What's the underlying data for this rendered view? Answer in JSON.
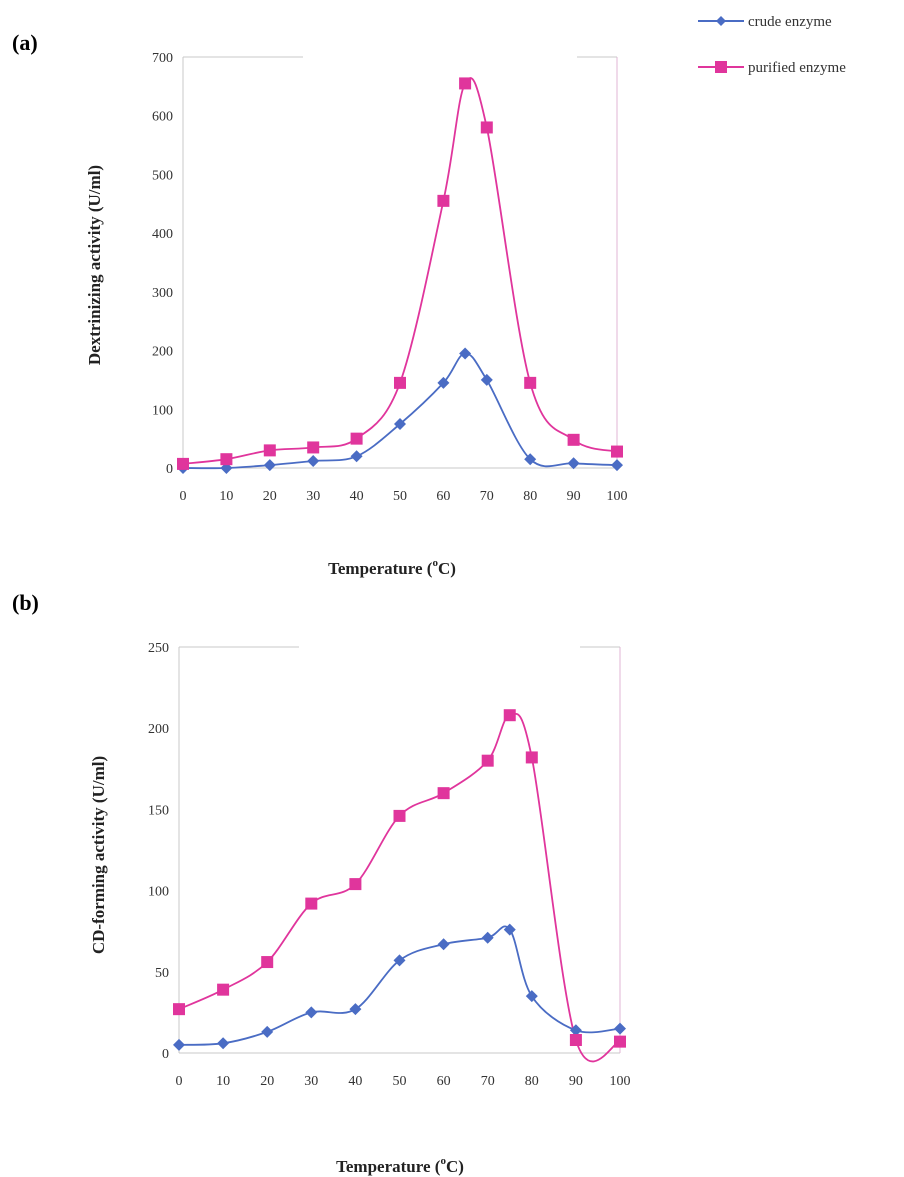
{
  "legend": {
    "crude_label": "crude enzyme",
    "purified_label": "purified enzyme",
    "crude_color": "#4a6cc4",
    "purified_color": "#e0359c",
    "placement": "top-right"
  },
  "chart_data": [
    {
      "panel": "(a)",
      "type": "line",
      "ylabel": "Dextrinizing activity (U/ml)",
      "xlabel_main": "Temperature (",
      "xlabel_sup": "o",
      "xlabel_tail": "C)",
      "xlim": [
        0,
        100
      ],
      "ylim": [
        0,
        700
      ],
      "xticks": [
        0,
        10,
        20,
        30,
        40,
        50,
        60,
        70,
        80,
        90,
        100
      ],
      "yticks": [
        0,
        100,
        200,
        300,
        400,
        500,
        600,
        700
      ],
      "grid": false,
      "series": [
        {
          "name": "crude enzyme",
          "marker": "diamond",
          "x": [
            0,
            10,
            20,
            30,
            40,
            50,
            60,
            65,
            70,
            80,
            90,
            100
          ],
          "y": [
            0,
            0,
            5,
            12,
            20,
            75,
            145,
            195,
            150,
            15,
            8,
            5
          ]
        },
        {
          "name": "purified enzyme",
          "marker": "square",
          "x": [
            0,
            10,
            20,
            30,
            40,
            50,
            60,
            65,
            70,
            80,
            90,
            100
          ],
          "y": [
            7,
            15,
            30,
            35,
            50,
            145,
            455,
            655,
            580,
            145,
            48,
            28
          ]
        }
      ]
    },
    {
      "panel": "(b)",
      "type": "line",
      "ylabel": "CD-forming activity (U/ml)",
      "xlabel_main": "Temperature (",
      "xlabel_sup": "o",
      "xlabel_tail": "C)",
      "xlim": [
        0,
        100
      ],
      "ylim": [
        0,
        250
      ],
      "xticks": [
        0,
        10,
        20,
        30,
        40,
        50,
        60,
        70,
        80,
        90,
        100
      ],
      "yticks": [
        0,
        50,
        100,
        150,
        200,
        250
      ],
      "grid": false,
      "series": [
        {
          "name": "crude enzyme",
          "marker": "diamond",
          "x": [
            0,
            10,
            20,
            30,
            40,
            50,
            60,
            70,
            75,
            80,
            90,
            100
          ],
          "y": [
            5,
            6,
            13,
            25,
            27,
            57,
            67,
            71,
            76,
            35,
            14,
            15
          ]
        },
        {
          "name": "purified enzyme",
          "marker": "square",
          "x": [
            0,
            10,
            20,
            30,
            40,
            50,
            60,
            70,
            75,
            80,
            90,
            100
          ],
          "y": [
            27,
            39,
            56,
            92,
            104,
            146,
            160,
            180,
            208,
            182,
            8,
            7
          ]
        }
      ]
    }
  ]
}
